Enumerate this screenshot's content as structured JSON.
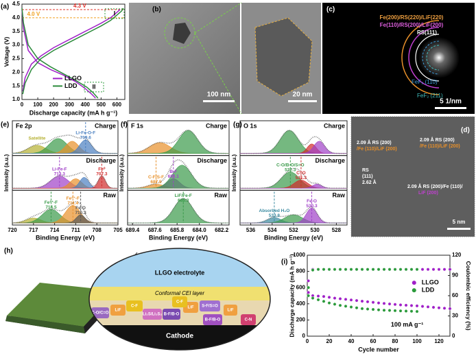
{
  "chart_data": [
    {
      "type": "line",
      "label": "(a)",
      "xlabel": "Discharge capacity (mA h g⁻¹)",
      "ylabel": "Voltage (V)",
      "xlim": [
        0,
        650
      ],
      "xticks": [
        0,
        100,
        200,
        300,
        400,
        500,
        600
      ],
      "ylim": [
        1,
        4.5
      ],
      "yticks": [
        {
          "value": 1,
          "label": "1.0"
        },
        1.5,
        {
          "value": 2,
          "label": "2.0"
        },
        2.5,
        {
          "value": 3,
          "label": "3.0"
        },
        3.5,
        {
          "value": 4,
          "label": "4.0"
        },
        4.5
      ],
      "reference_lines": [
        {
          "value": 4.3,
          "label": "4.3 V",
          "color": "#e0302a"
        },
        {
          "value": 4.0,
          "label": "4.0 V",
          "color": "#f0a020"
        }
      ],
      "annotations": [
        "I",
        "II"
      ],
      "series": [
        {
          "name": "LLGO",
          "color": "#a020c8",
          "x": [
            0,
            10,
            40,
            100,
            180,
            260,
            340,
            400,
            440,
            465,
            null,
            5,
            20,
            60,
            120,
            200,
            300,
            400,
            500,
            560,
            600,
            620
          ],
          "values": [
            4.3,
            3.6,
            2.8,
            2.35,
            2.1,
            1.9,
            1.65,
            1.4,
            1.2,
            1.05,
            null,
            1.3,
            1.8,
            2.3,
            2.6,
            2.9,
            3.2,
            3.5,
            3.8,
            4.0,
            4.2,
            4.3
          ]
        },
        {
          "name": "LDD",
          "color": "#2a8a3a",
          "x": [
            0,
            10,
            40,
            100,
            180,
            260,
            340,
            410,
            450,
            480,
            null,
            5,
            20,
            60,
            120,
            200,
            300,
            400,
            500,
            560,
            600,
            630,
            640
          ],
          "values": [
            4.35,
            3.8,
            3.0,
            2.5,
            2.2,
            1.95,
            1.7,
            1.45,
            1.25,
            1.05,
            null,
            1.2,
            1.6,
            2.1,
            2.5,
            2.8,
            3.1,
            3.4,
            3.7,
            3.9,
            4.1,
            4.25,
            4.35
          ]
        }
      ]
    },
    {
      "type": "xps",
      "label": "(e)",
      "title": "Fe 2p",
      "xlabel": "Binding Energy (eV)",
      "ylabel": "Intensity (a.u.)",
      "xlim": [
        720,
        705
      ],
      "xticks": [
        720,
        717,
        714,
        711,
        708,
        705
      ],
      "subpanels": [
        {
          "name": "Charge",
          "peaks": [
            {
              "label": "Satellite",
              "center": 716.5,
              "height": 0.3,
              "fwhm": 3,
              "color": "#b5b030"
            },
            {
              "label": null,
              "center": 713.5,
              "height": 0.55,
              "fwhm": 3,
              "color": "#3a9a4a"
            },
            {
              "label": null,
              "center": 711.5,
              "height": 0.45,
              "fwhm": 2.2,
              "color": "#e8902a"
            },
            {
              "label": "Li-Fe-O-F",
              "position": 709.6,
              "height": 0.5,
              "fwhm": 2,
              "color": "#4a7fc0"
            }
          ]
        },
        {
          "name": "Discharge",
          "peaks": [
            {
              "label": "Li-Fe-F",
              "position": 713.3,
              "height": 0.45,
              "fwhm": 3,
              "color": "#a040c8"
            },
            {
              "label": null,
              "center": 711,
              "height": 0.35,
              "fwhm": 2,
              "color": "#e8902a"
            },
            {
              "label": null,
              "center": 709.8,
              "height": 0.4,
              "fwhm": 1.5,
              "color": "#4a7fc0"
            },
            {
              "label": "Fe⁰",
              "position": 707.3,
              "height": 0.45,
              "fwhm": 1.2,
              "color": "#d02a2a"
            }
          ]
        },
        {
          "name": "Raw",
          "peaks": [
            {
              "label": null,
              "center": 717,
              "height": 0.18,
              "fwhm": 2.5,
              "color": "#b5b030"
            },
            {
              "label": "Fe³⁺-F",
              "position": 714.5,
              "height": 0.5,
              "fwhm": 3,
              "color": "#3a9a4a"
            },
            {
              "label": "Fe²⁺-F",
              "position": 711.4,
              "height": 0.65,
              "fwhm": 2.5,
              "color": "#e8902a"
            },
            {
              "label": "Fe-O",
              "position": 710.3,
              "height": 0.3,
              "fwhm": 1.5,
              "color": "#555555"
            }
          ]
        }
      ]
    },
    {
      "type": "xps",
      "label": "(f)",
      "title": "F 1s",
      "xlabel": "Binding Energy (eV)",
      "ylabel": "Intensity (a.u.)",
      "xlim": [
        689.8,
        681.6
      ],
      "xticks": [
        689.4,
        687.6,
        685.8,
        {
          "value": 684,
          "label": "684.0"
        },
        682.2
      ],
      "subpanels": [
        {
          "name": "Charge",
          "peaks": [
            {
              "label": null,
              "center": 687.2,
              "height": 0.4,
              "fwhm": 2,
              "color": "#e8902a"
            },
            {
              "label": null,
              "center": 684.9,
              "height": 0.85,
              "fwhm": 1.8,
              "color": "#3a9a4a"
            }
          ]
        },
        {
          "name": "Discharge",
          "peaks": [
            {
              "label": "C-F/S-F",
              "position": 687.5,
              "height": 0.15,
              "fwhm": 1.5,
              "color": "#e8902a"
            },
            {
              "label": "B-F",
              "position": 686.1,
              "height": 0.35,
              "fwhm": 1.2,
              "color": "#a040c8"
            },
            {
              "label": null,
              "center": 685.4,
              "height": 0.85,
              "fwhm": 1.8,
              "color": "#3a9a4a"
            }
          ]
        },
        {
          "name": "Raw",
          "peaks": [
            {
              "label": "LiF/Fe-F",
              "position": 685.3,
              "height": 0.9,
              "fwhm": 1.8,
              "color": "#3a9a4a"
            }
          ]
        }
      ]
    },
    {
      "type": "xps",
      "label": "(g)",
      "title": "O 1s",
      "xlabel": "Binding Energy (eV)",
      "ylabel": "Intensity (a.u.)",
      "xlim": [
        537,
        527
      ],
      "xticks": [
        536,
        534,
        532,
        530,
        528
      ],
      "subpanels": [
        {
          "name": "Charge",
          "peaks": [
            {
              "label": null,
              "center": 532.4,
              "height": 0.85,
              "fwhm": 2,
              "color": "#3a9a4a"
            },
            {
              "label": null,
              "center": 530.3,
              "height": 0.35,
              "fwhm": 1,
              "color": "#d02a2a"
            },
            {
              "label": null,
              "center": 529.6,
              "height": 0.45,
              "fwhm": 1.2,
              "color": "#a040c8"
            }
          ]
        },
        {
          "name": "Discharge",
          "peaks": [
            {
              "label": "C-O/B-O/S=O",
              "position": 532.3,
              "height": 0.6,
              "fwhm": 2,
              "color": "#3a9a4a"
            },
            {
              "label": "C=O",
              "position": 531.3,
              "height": 0.3,
              "fwhm": 1.5,
              "color": "#d02a2a"
            },
            {
              "label": null,
              "center": 529.8,
              "height": 0.15,
              "fwhm": 1,
              "color": "#a040c8"
            }
          ]
        },
        {
          "name": "Raw",
          "peaks": [
            {
              "label": "Absorbed H₂O",
              "position": 533.8,
              "height": 0.2,
              "fwhm": 1.5,
              "color": "#3a8aa0"
            },
            {
              "label": null,
              "center": 532,
              "height": 0.3,
              "fwhm": 2,
              "color": "#3a9a4a"
            },
            {
              "label": "Fe-O",
              "position": 530.3,
              "height": 0.55,
              "fwhm": 1.2,
              "color": "#a040c8"
            }
          ]
        }
      ]
    },
    {
      "type": "line",
      "label": "(i)",
      "xlabel": "Cycle number",
      "ylabel": "Discharge capacity (mA h g⁻¹)",
      "y2label": "Coulombic efficiency (%)",
      "xlim": [
        0,
        130
      ],
      "xticks": [
        0,
        20,
        40,
        60,
        80,
        100,
        120
      ],
      "ylim": [
        0,
        1000
      ],
      "yticks": [
        0,
        200,
        400,
        600,
        800,
        1000
      ],
      "y2lim": [
        0,
        120
      ],
      "y2ticks": [
        0,
        30,
        60,
        90,
        120
      ],
      "markers": true,
      "annotations": [
        "100 mA g⁻¹"
      ],
      "series": [
        {
          "name": "LLGO",
          "color": "#a020c8",
          "x": [
            1,
            5,
            10,
            15,
            20,
            25,
            30,
            35,
            40,
            45,
            50,
            55,
            60,
            65,
            70,
            75,
            80,
            85,
            90,
            95,
            100,
            105,
            110,
            115,
            120,
            125,
            130
          ],
          "values": [
            540,
            500,
            495,
            490,
            480,
            470,
            462,
            455,
            447,
            440,
            432,
            425,
            418,
            410,
            404,
            398,
            392,
            386,
            382,
            378,
            374,
            368,
            362,
            356,
            350,
            345,
            340
          ]
        },
        {
          "name": "LDD",
          "color": "#2a9a3a",
          "x": [
            1,
            5,
            10,
            15,
            20,
            25,
            30,
            35,
            40,
            45,
            50,
            55,
            60,
            65,
            70,
            75,
            80,
            85,
            90,
            95,
            100
          ],
          "values": [
            500,
            470,
            450,
            430,
            410,
            395,
            380,
            370,
            360,
            350,
            340,
            335,
            330,
            325,
            320,
            318,
            315,
            312,
            310,
            308,
            305
          ]
        },
        {
          "axis": "y2",
          "color": "#a020c8",
          "x": [
            1,
            5,
            10,
            15,
            20,
            25,
            30,
            35,
            40,
            45,
            50,
            55,
            60,
            65,
            70,
            75,
            80,
            85,
            90,
            95,
            100,
            105,
            110,
            115,
            120,
            125,
            130
          ],
          "values": [
            82,
            99,
            99,
            99,
            99,
            99,
            99,
            99,
            99,
            99,
            99,
            99,
            99,
            99,
            99,
            99,
            99,
            99,
            99,
            99,
            99,
            99,
            99,
            99,
            99,
            99,
            99
          ]
        },
        {
          "axis": "y2",
          "color": "#2a9a3a",
          "x": [
            1,
            5,
            10,
            15,
            20,
            25,
            30,
            35,
            40,
            45,
            50,
            55,
            60,
            65,
            70,
            75,
            80,
            85,
            90,
            95,
            100
          ],
          "values": [
            72,
            98,
            99,
            99,
            99,
            99,
            99,
            99,
            99,
            99,
            99,
            99,
            99,
            99,
            99,
            99,
            99,
            99,
            99,
            99,
            99
          ]
        }
      ]
    }
  ],
  "panels": {
    "b": {
      "label": "(b)",
      "scale_bars": [
        "100 nm",
        "20 nm"
      ]
    },
    "c": {
      "label": "(c)",
      "rings": [
        "Fe(200)/RS(220)/LiF(220)",
        "Fe(110)/RS(200)/LiF(200)",
        "RS(111)",
        "FeF₂ (110)",
        "FeF₂ (211)"
      ],
      "scale_bar": "5 1/nm"
    },
    "d": {
      "label": "(d)",
      "annotations": [
        "2.09 Å RS (200)",
        "/Fe (110)/LiF (200)",
        "2.09 Å RS (200)",
        "/Fe (110)/LiF (200)",
        "RS",
        "(111)",
        "2.62 Å",
        "2.09 Å RS (200)/Fe (110)/",
        "LiF (200)"
      ],
      "scale_bar": "5 nm"
    },
    "h": {
      "label": "(h)",
      "electrolyte": "LLGO electrolyte",
      "layer": "Conformal CEI layer",
      "cathode": "Cathode",
      "species": [
        "C-O/C=O",
        "LiF",
        "C-F",
        "Li₂S/Li₂S₂",
        "B-F/B-O",
        "LiF",
        "S-F/S=O",
        "LiF",
        "C-F",
        "B-F/B-O",
        "C-N"
      ]
    }
  }
}
